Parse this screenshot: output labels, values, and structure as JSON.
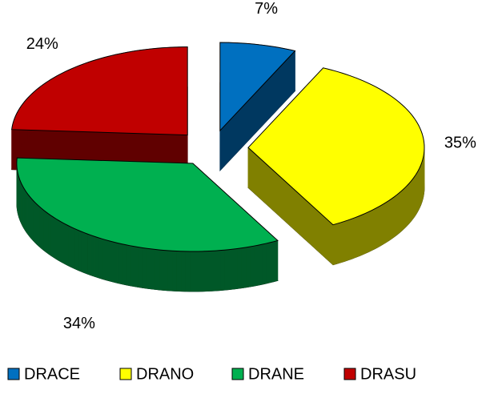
{
  "chart_data": {
    "type": "pie",
    "categories": [
      "DRACE",
      "DRANO",
      "DRANE",
      "DRASU"
    ],
    "values": [
      7,
      35,
      34,
      24
    ],
    "value_labels": [
      "7%",
      "35%",
      "34%",
      "24%"
    ],
    "colors": [
      "#0070c0",
      "#ffff00",
      "#00b050",
      "#c00000"
    ],
    "legend": "bottom"
  }
}
